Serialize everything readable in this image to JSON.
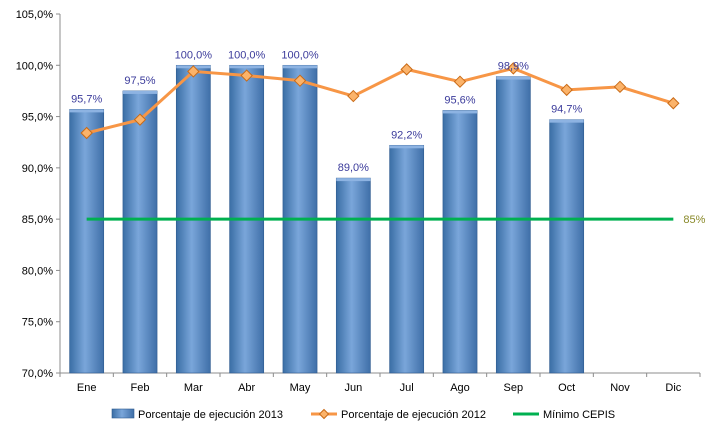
{
  "chart_data": {
    "type": "bar",
    "categories": [
      "Ene",
      "Feb",
      "Mar",
      "Abr",
      "May",
      "Jun",
      "Jul",
      "Ago",
      "Sep",
      "Oct",
      "Nov",
      "Dic"
    ],
    "ylim": [
      70,
      105
    ],
    "yticks": [
      70,
      75,
      80,
      85,
      90,
      95,
      100,
      105
    ],
    "ytick_labels": [
      "70,0%",
      "75,0%",
      "80,0%",
      "85,0%",
      "90,0%",
      "95,0%",
      "100,0%",
      "105,0%"
    ],
    "grid": false,
    "legend_position": "bottom",
    "series": [
      {
        "name": "Porcentaje de ejecución 2013",
        "kind": "bar",
        "color": "#4f81bd",
        "values": [
          95.7,
          97.5,
          100.0,
          100.0,
          100.0,
          89.0,
          92.2,
          95.6,
          98.9,
          94.7,
          null,
          null
        ],
        "labels": [
          "95,7%",
          "97,5%",
          "100,0%",
          "100,0%",
          "100,0%",
          "89,0%",
          "92,2%",
          "95,6%",
          "98,9%",
          "94,7%",
          "",
          ""
        ]
      },
      {
        "name": "Porcentaje de ejecución 2012",
        "kind": "line",
        "color": "#f79646",
        "values": [
          93.4,
          94.7,
          99.4,
          99.0,
          98.5,
          97.0,
          99.6,
          98.4,
          99.7,
          97.6,
          97.9,
          96.3
        ]
      },
      {
        "name": "Mínimo CEPIS",
        "kind": "line",
        "color": "#00b050",
        "values": [
          85,
          85,
          85,
          85,
          85,
          85,
          85,
          85,
          85,
          85,
          85,
          85
        ],
        "end_label": "85%"
      }
    ]
  }
}
